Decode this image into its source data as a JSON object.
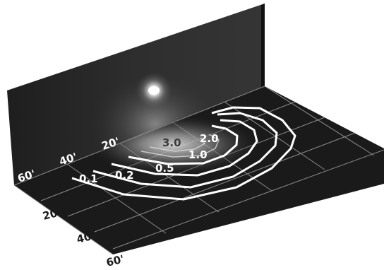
{
  "wall_depth_labels": [
    "20'",
    "40'",
    "60'"
  ],
  "floor_distance_labels": [
    "20'",
    "40'",
    "60'"
  ],
  "contours": [
    {
      "value": "0.1"
    },
    {
      "value": "0.2"
    },
    {
      "value": "0.5"
    },
    {
      "value": "1.0"
    },
    {
      "value": "2.0"
    },
    {
      "value": "3.0"
    }
  ],
  "colors": {
    "wall": "#2a2a2a",
    "floor": "#1c1c1c",
    "grid": "#8a8a8a",
    "contour": "#ffffff",
    "light": "#ffffff"
  },
  "icons": {
    "light_source": "light-fixture-glow"
  }
}
